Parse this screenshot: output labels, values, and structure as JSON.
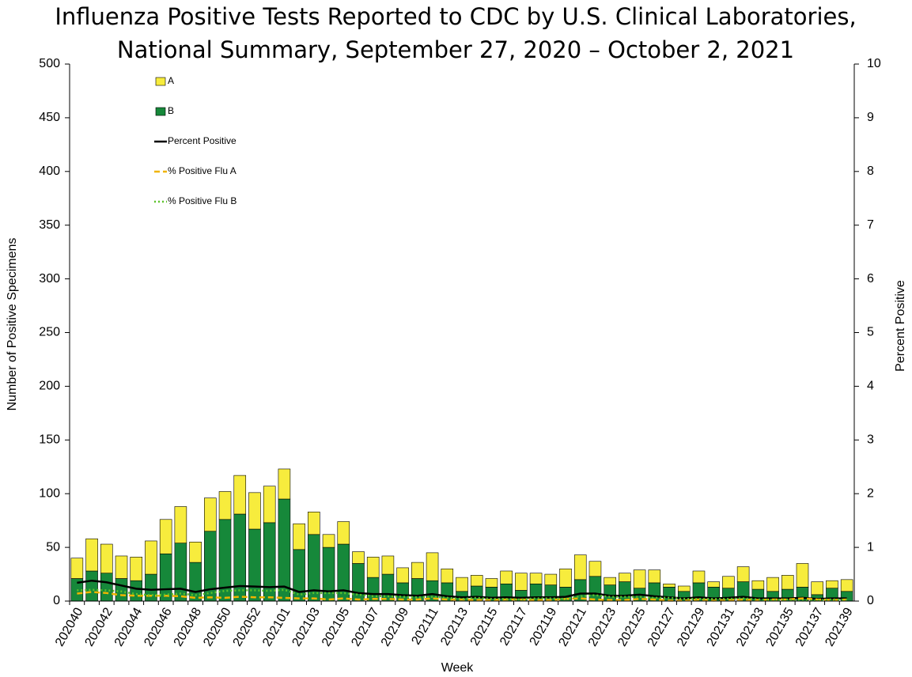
{
  "chart_data": {
    "type": "stacked-bar-line",
    "title": "Influenza Positive Tests Reported to CDC by U.S. Clinical Laboratories, National Summary, September 27, 2020 – October 2, 2021",
    "x_label": "Week",
    "y_label": "Number of Positive Specimens",
    "y2_label": "Percent Positive",
    "categories": [
      "202040",
      null,
      "202042",
      null,
      "202044",
      null,
      "202046",
      null,
      "202048",
      null,
      "202050",
      null,
      "202052",
      null,
      "202101",
      null,
      "202103",
      null,
      "202105",
      null,
      "202107",
      null,
      "202109",
      null,
      "202111",
      null,
      "202113",
      null,
      "202115",
      null,
      "202117",
      null,
      "202119",
      null,
      "202121",
      null,
      "202123",
      null,
      "202125",
      null,
      "202127",
      null,
      "202129",
      null,
      "202131",
      null,
      "202133",
      null,
      "202135",
      null,
      "202137",
      null,
      "202139"
    ],
    "series": [
      {
        "name": "B",
        "kind": "bar",
        "color": "#16883a",
        "values": [
          21,
          28,
          26,
          21,
          19,
          25,
          44,
          54,
          36,
          65,
          76,
          81,
          67,
          73,
          95,
          48,
          62,
          50,
          53,
          35,
          22,
          25,
          17,
          21,
          19,
          17,
          9,
          14,
          13,
          16,
          10,
          16,
          15,
          13,
          20,
          23,
          15,
          18,
          12,
          17,
          13,
          9,
          17,
          13,
          12,
          18,
          11,
          9,
          11,
          13,
          6,
          12,
          9
        ]
      },
      {
        "name": "A",
        "kind": "bar",
        "color": "#f7ec3d",
        "values": [
          19,
          30,
          27,
          21,
          22,
          31,
          32,
          34,
          19,
          31,
          26,
          36,
          34,
          34,
          28,
          24,
          21,
          12,
          21,
          11,
          19,
          17,
          14,
          15,
          26,
          13,
          13,
          10,
          8,
          12,
          16,
          10,
          10,
          17,
          23,
          14,
          7,
          8,
          17,
          12,
          3,
          5,
          11,
          5,
          11,
          14,
          8,
          13,
          13,
          22,
          12,
          7,
          11
        ]
      },
      {
        "name": "Percent Positive",
        "kind": "line",
        "axis": "y2",
        "style": "solid",
        "color": "#000000",
        "values": [
          0.34,
          0.38,
          0.35,
          0.29,
          0.23,
          0.21,
          0.22,
          0.23,
          0.17,
          0.22,
          0.25,
          0.28,
          0.27,
          0.26,
          0.27,
          0.17,
          0.2,
          0.18,
          0.2,
          0.15,
          0.13,
          0.13,
          0.11,
          0.1,
          0.13,
          0.09,
          0.07,
          0.08,
          0.06,
          0.07,
          0.06,
          0.07,
          0.07,
          0.08,
          0.14,
          0.14,
          0.1,
          0.1,
          0.12,
          0.09,
          0.07,
          0.05,
          0.07,
          0.05,
          0.06,
          0.08,
          0.05,
          0.05,
          0.05,
          0.06,
          0.04,
          0.05,
          0.05
        ]
      },
      {
        "name": "% Positive Flu A",
        "kind": "line",
        "axis": "y2",
        "style": "dashed",
        "color": "#f0b400",
        "values": [
          0.14,
          0.17,
          0.15,
          0.11,
          0.1,
          0.1,
          0.1,
          0.09,
          0.06,
          0.07,
          0.06,
          0.08,
          0.07,
          0.07,
          0.06,
          0.05,
          0.05,
          0.03,
          0.05,
          0.03,
          0.04,
          0.04,
          0.03,
          0.03,
          0.05,
          0.03,
          0.03,
          0.02,
          0.02,
          0.03,
          0.03,
          0.02,
          0.02,
          0.04,
          0.05,
          0.03,
          0.02,
          0.02,
          0.04,
          0.03,
          0.01,
          0.01,
          0.03,
          0.01,
          0.02,
          0.03,
          0.02,
          0.03,
          0.03,
          0.05,
          0.03,
          0.02,
          0.03
        ]
      },
      {
        "name": "% Positive Flu B",
        "kind": "line",
        "axis": "y2",
        "style": "dotted",
        "color": "#5cc22a",
        "values": [
          0.2,
          0.21,
          0.2,
          0.18,
          0.13,
          0.11,
          0.12,
          0.14,
          0.11,
          0.15,
          0.19,
          0.2,
          0.2,
          0.19,
          0.21,
          0.12,
          0.15,
          0.15,
          0.15,
          0.12,
          0.09,
          0.09,
          0.08,
          0.07,
          0.08,
          0.06,
          0.04,
          0.06,
          0.04,
          0.04,
          0.03,
          0.05,
          0.05,
          0.04,
          0.09,
          0.11,
          0.08,
          0.08,
          0.08,
          0.06,
          0.06,
          0.04,
          0.04,
          0.04,
          0.04,
          0.05,
          0.03,
          0.02,
          0.03,
          0.01,
          0.01,
          0.03,
          0.02
        ]
      }
    ],
    "legend_order": [
      1,
      0,
      2,
      3,
      4
    ],
    "legend": "upper-left",
    "ylim": [
      0,
      500
    ],
    "yticks": [
      0,
      50,
      100,
      150,
      200,
      250,
      300,
      350,
      400,
      450,
      500
    ],
    "y2lim": [
      0,
      10
    ],
    "y2ticks": [
      0,
      1,
      2,
      3,
      4,
      5,
      6,
      7,
      8,
      9,
      10
    ],
    "grid": false
  }
}
